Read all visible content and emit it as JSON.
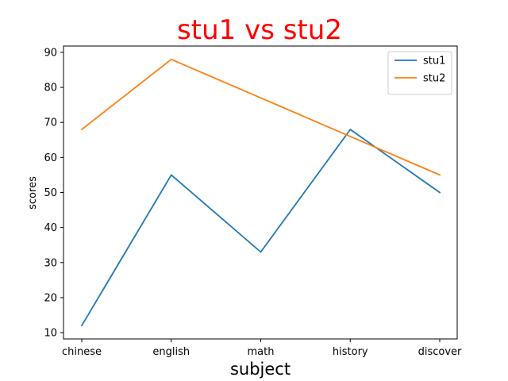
{
  "chart_data": {
    "type": "line",
    "title": "stu1 vs stu2",
    "xlabel": "subject",
    "ylabel": "scores",
    "categories": [
      "chinese",
      "english",
      "math",
      "history",
      "discover"
    ],
    "series": [
      {
        "name": "stu1",
        "values": [
          12,
          55,
          33,
          68,
          50
        ],
        "color": "#1f77b4"
      },
      {
        "name": "stu2",
        "values": [
          68,
          88,
          77,
          66,
          55
        ],
        "color": "#ff7f0e"
      }
    ],
    "ylim": [
      8.2,
      91.8
    ],
    "yticks": [
      10,
      20,
      30,
      40,
      50,
      60,
      70,
      80,
      90
    ],
    "grid": false,
    "legend": "top-right",
    "title_color": "#ff0000"
  }
}
